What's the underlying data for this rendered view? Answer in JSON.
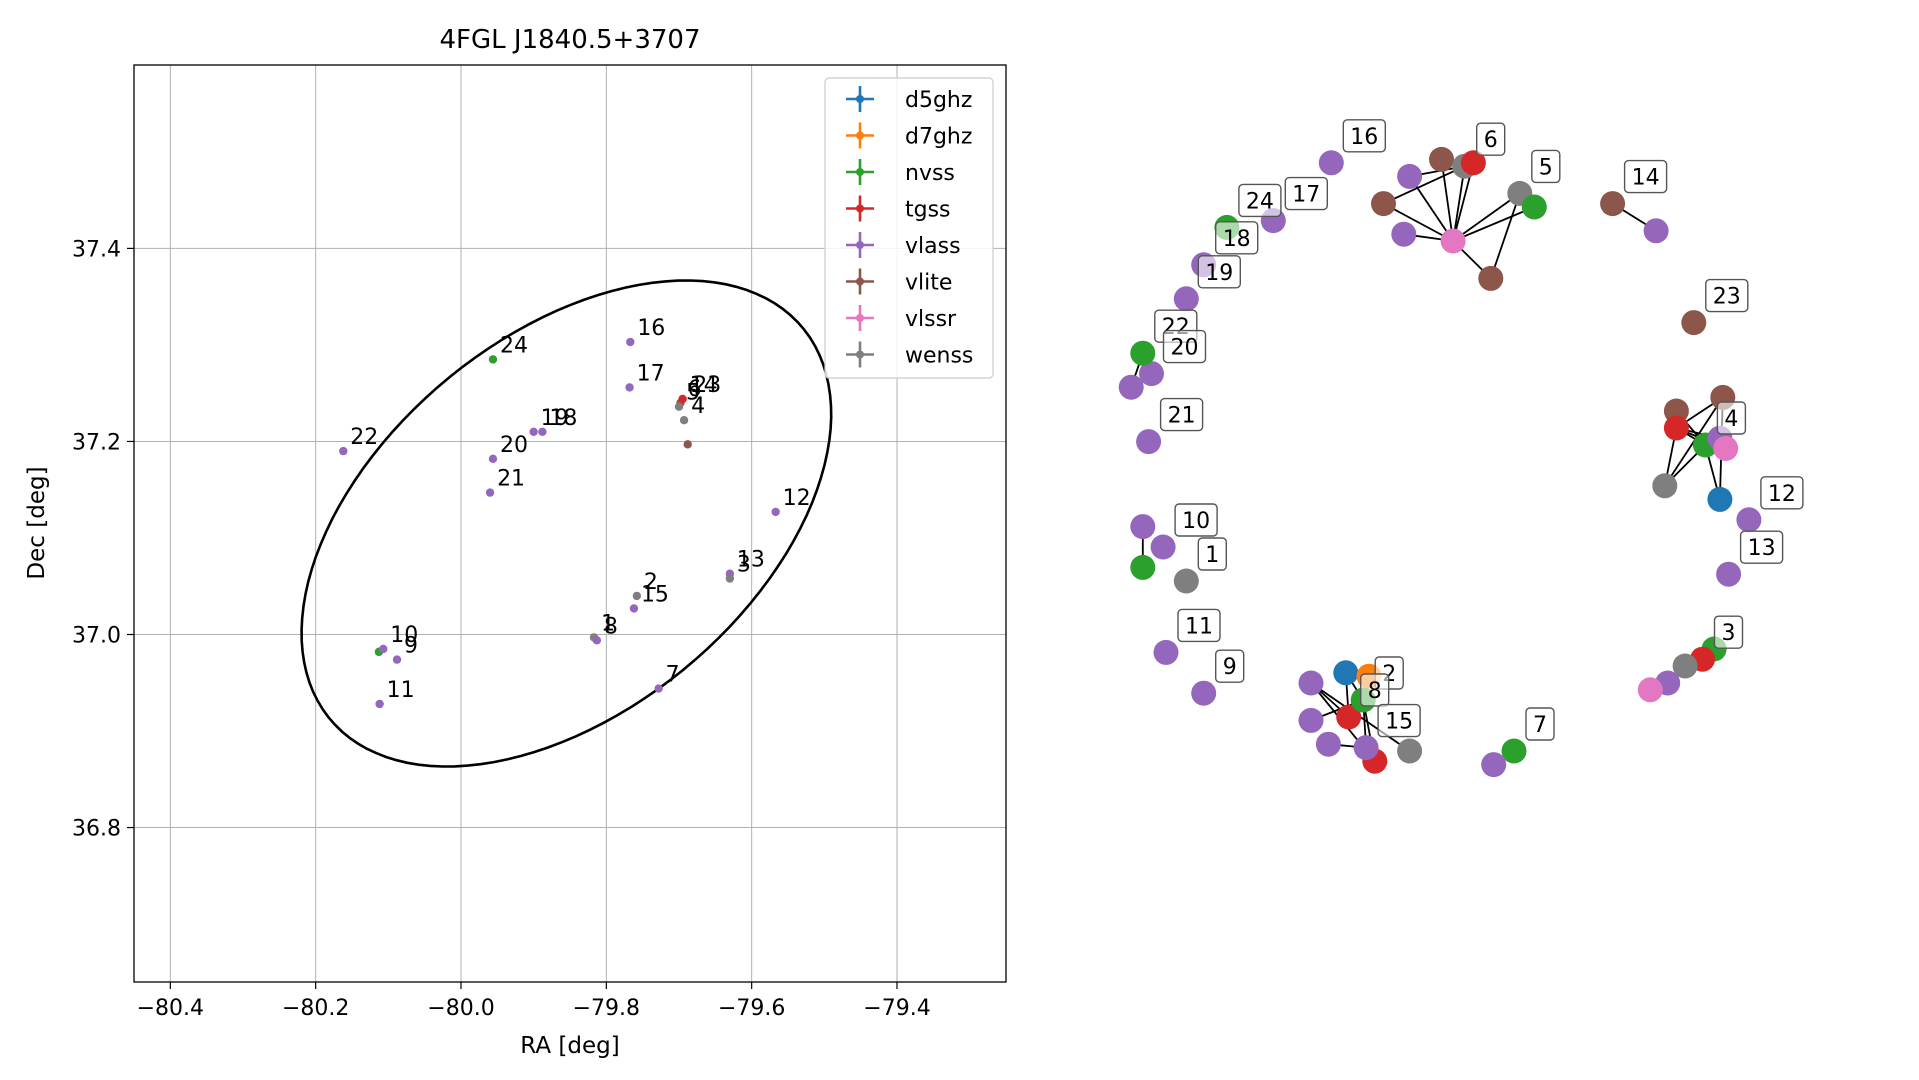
{
  "chart_data": [
    {
      "type": "scatter",
      "title": "4FGL J1840.5+3707",
      "xlabel": "RA [deg]",
      "ylabel": "Dec [deg]",
      "xlim": [
        -80.45,
        -79.25
      ],
      "ylim": [
        36.64,
        37.59
      ],
      "xticks": [
        -80.4,
        -80.2,
        -80.0,
        -79.8,
        -79.6,
        -79.4
      ],
      "xtick_labels": [
        "−80.4",
        "−80.2",
        "−80.0",
        "−79.8",
        "−79.6",
        "−79.4"
      ],
      "yticks": [
        36.8,
        37.0,
        37.2,
        37.4
      ],
      "ytick_labels": [
        "36.8",
        "37.0",
        "37.2",
        "37.4"
      ],
      "grid": true,
      "legend_position": "top-right",
      "series": [
        {
          "name": "d5ghz",
          "color": "#1f77b4"
        },
        {
          "name": "d7ghz",
          "color": "#ff7f0e"
        },
        {
          "name": "nvss",
          "color": "#2ca02c"
        },
        {
          "name": "tgss",
          "color": "#d62728"
        },
        {
          "name": "vlass",
          "color": "#9467bd"
        },
        {
          "name": "vlite",
          "color": "#8c564b"
        },
        {
          "name": "vlssr",
          "color": "#e377c2"
        },
        {
          "name": "wenss",
          "color": "#7f7f7f"
        }
      ],
      "ellipse": {
        "center_ra": -79.855,
        "center_dec": 37.115,
        "semi_major_deg": 0.39,
        "semi_minor_deg": 0.21,
        "angle_deg": 25
      },
      "points": [
        {
          "ra": -79.956,
          "dec": 37.285,
          "series": "nvss"
        },
        {
          "ra": -80.162,
          "dec": 37.19,
          "series": "vlass"
        },
        {
          "ra": -79.956,
          "dec": 37.182,
          "series": "vlass"
        },
        {
          "ra": -79.96,
          "dec": 37.147,
          "series": "vlass"
        },
        {
          "ra": -79.9,
          "dec": 37.21,
          "series": "vlass"
        },
        {
          "ra": -79.888,
          "dec": 37.21,
          "series": "vlass"
        },
        {
          "ra": -79.767,
          "dec": 37.303,
          "series": "vlass"
        },
        {
          "ra": -79.768,
          "dec": 37.256,
          "series": "vlass"
        },
        {
          "ra": -79.698,
          "dec": 37.24,
          "series": "vlite"
        },
        {
          "ra": -79.695,
          "dec": 37.244,
          "series": "tgss"
        },
        {
          "ra": -79.7,
          "dec": 37.236,
          "series": "wenss"
        },
        {
          "ra": -79.693,
          "dec": 37.222,
          "series": "wenss"
        },
        {
          "ra": -79.688,
          "dec": 37.197,
          "series": "vlite"
        },
        {
          "ra": -79.567,
          "dec": 37.127,
          "series": "vlass"
        },
        {
          "ra": -79.63,
          "dec": 37.063,
          "series": "vlass"
        },
        {
          "ra": -79.63,
          "dec": 37.058,
          "series": "wenss"
        },
        {
          "ra": -79.758,
          "dec": 37.04,
          "series": "wenss"
        },
        {
          "ra": -79.762,
          "dec": 37.027,
          "series": "vlass"
        },
        {
          "ra": -79.817,
          "dec": 36.997,
          "series": "wenss"
        },
        {
          "ra": -79.813,
          "dec": 36.994,
          "series": "vlass"
        },
        {
          "ra": -79.728,
          "dec": 36.944,
          "series": "vlass"
        },
        {
          "ra": -80.113,
          "dec": 36.982,
          "series": "nvss"
        },
        {
          "ra": -80.107,
          "dec": 36.985,
          "series": "vlass"
        },
        {
          "ra": -80.088,
          "dec": 36.974,
          "series": "vlass"
        },
        {
          "ra": -80.112,
          "dec": 36.928,
          "series": "vlass"
        }
      ],
      "annotations": [
        {
          "text": "24",
          "ra": -79.956,
          "dec": 37.285
        },
        {
          "text": "22",
          "ra": -80.162,
          "dec": 37.19
        },
        {
          "text": "20",
          "ra": -79.956,
          "dec": 37.182
        },
        {
          "text": "21",
          "ra": -79.96,
          "dec": 37.147
        },
        {
          "text": "19",
          "ra": -79.9,
          "dec": 37.21
        },
        {
          "text": "18",
          "ra": -79.888,
          "dec": 37.21
        },
        {
          "text": "16",
          "ra": -79.767,
          "dec": 37.303
        },
        {
          "text": "17",
          "ra": -79.768,
          "dec": 37.256
        },
        {
          "text": "6",
          "ra": -79.698,
          "dec": 37.24
        },
        {
          "text": "14",
          "ra": -79.695,
          "dec": 37.244
        },
        {
          "text": "23",
          "ra": -79.69,
          "dec": 37.244
        },
        {
          "text": "5",
          "ra": -79.7,
          "dec": 37.236
        },
        {
          "text": "4",
          "ra": -79.693,
          "dec": 37.222
        },
        {
          "text": "12",
          "ra": -79.567,
          "dec": 37.127
        },
        {
          "text": "13",
          "ra": -79.63,
          "dec": 37.063
        },
        {
          "text": "3",
          "ra": -79.63,
          "dec": 37.058
        },
        {
          "text": "2",
          "ra": -79.758,
          "dec": 37.04
        },
        {
          "text": "15",
          "ra": -79.762,
          "dec": 37.027
        },
        {
          "text": "1",
          "ra": -79.817,
          "dec": 36.997
        },
        {
          "text": "8",
          "ra": -79.813,
          "dec": 36.994
        },
        {
          "text": "7",
          "ra": -79.728,
          "dec": 36.944
        },
        {
          "text": "10",
          "ra": -80.107,
          "dec": 36.985
        },
        {
          "text": "9",
          "ra": -80.088,
          "dec": 36.974
        },
        {
          "text": "11",
          "ra": -80.112,
          "dec": 36.928
        }
      ]
    },
    {
      "type": "network",
      "nodes": [
        {
          "id": "n6_vlass_a",
          "series": "vlass",
          "u": -0.18,
          "v": 0.62
        },
        {
          "id": "n6_vlite_a",
          "series": "vlite",
          "u": -0.25,
          "v": 0.71
        },
        {
          "id": "n6_vlass_b",
          "series": "vlass",
          "u": -0.16,
          "v": 0.79
        },
        {
          "id": "n6_vlite_b",
          "series": "vlite",
          "u": -0.05,
          "v": 0.84
        },
        {
          "id": "n6_wenss",
          "series": "wenss",
          "u": 0.03,
          "v": 0.82
        },
        {
          "id": "n6_tgss",
          "series": "tgss",
          "u": 0.06,
          "v": 0.83
        },
        {
          "id": "n6_vlssr",
          "series": "vlssr",
          "u": -0.01,
          "v": 0.6
        },
        {
          "id": "n6_vlite_c",
          "series": "vlite",
          "u": 0.12,
          "v": 0.49
        },
        {
          "id": "n6_wenss_b",
          "series": "wenss",
          "u": 0.22,
          "v": 0.74
        },
        {
          "id": "n6_nvss",
          "series": "nvss",
          "u": 0.27,
          "v": 0.7
        },
        {
          "id": "n14_vlite",
          "series": "vlite",
          "u": 0.54,
          "v": 0.71
        },
        {
          "id": "n14_vlass",
          "series": "vlass",
          "u": 0.69,
          "v": 0.63
        },
        {
          "id": "n23_vlite",
          "series": "vlite",
          "u": 0.82,
          "v": 0.36
        },
        {
          "id": "n4_vlite_a",
          "series": "vlite",
          "u": 0.92,
          "v": 0.14
        },
        {
          "id": "n4_vlite_b",
          "series": "vlite",
          "u": 0.76,
          "v": 0.1
        },
        {
          "id": "n4_tgss",
          "series": "tgss",
          "u": 0.76,
          "v": 0.05
        },
        {
          "id": "n4_nvss",
          "series": "nvss",
          "u": 0.86,
          "v": 0.0
        },
        {
          "id": "n4_vlass",
          "series": "vlass",
          "u": 0.91,
          "v": 0.02
        },
        {
          "id": "n4_vlssr",
          "series": "vlssr",
          "u": 0.93,
          "v": -0.01
        },
        {
          "id": "n4_wenss",
          "series": "wenss",
          "u": 0.72,
          "v": -0.12
        },
        {
          "id": "n4_d5ghz",
          "series": "d5ghz",
          "u": 0.91,
          "v": -0.16
        },
        {
          "id": "n12_vlass",
          "series": "vlass",
          "u": 1.01,
          "v": -0.22
        },
        {
          "id": "n13_vlass",
          "series": "vlass",
          "u": 0.94,
          "v": -0.38
        },
        {
          "id": "n3_nvss",
          "series": "nvss",
          "u": 0.89,
          "v": -0.6
        },
        {
          "id": "n3_tgss",
          "series": "tgss",
          "u": 0.85,
          "v": -0.63
        },
        {
          "id": "n3_wenss",
          "series": "wenss",
          "u": 0.79,
          "v": -0.65
        },
        {
          "id": "n3_vlass",
          "series": "vlass",
          "u": 0.73,
          "v": -0.7
        },
        {
          "id": "n3_vlssr",
          "series": "vlssr",
          "u": 0.67,
          "v": -0.72
        },
        {
          "id": "n7_nvss",
          "series": "nvss",
          "u": 0.2,
          "v": -0.9
        },
        {
          "id": "n7_vlass",
          "series": "vlass",
          "u": 0.13,
          "v": -0.94
        },
        {
          "id": "n15_wenss",
          "series": "wenss",
          "u": -0.16,
          "v": -0.9
        },
        {
          "id": "n15_tgss",
          "series": "tgss",
          "u": -0.28,
          "v": -0.93
        },
        {
          "id": "n15_vlass_a",
          "series": "vlass",
          "u": -0.31,
          "v": -0.89
        },
        {
          "id": "n15_vlass_b",
          "series": "vlass",
          "u": -0.44,
          "v": -0.88
        },
        {
          "id": "n8_tgss",
          "series": "tgss",
          "u": -0.37,
          "v": -0.8
        },
        {
          "id": "n8_vlass_a",
          "series": "vlass",
          "u": -0.5,
          "v": -0.81
        },
        {
          "id": "n8_vlass_b",
          "series": "vlass",
          "u": -0.5,
          "v": -0.7
        },
        {
          "id": "n2_d5ghz",
          "series": "d5ghz",
          "u": -0.38,
          "v": -0.67
        },
        {
          "id": "n2_d7ghz",
          "series": "d7ghz",
          "u": -0.3,
          "v": -0.68
        },
        {
          "id": "n2_nvss",
          "series": "nvss",
          "u": -0.32,
          "v": -0.75
        },
        {
          "id": "n9_vlass",
          "series": "vlass",
          "u": -0.87,
          "v": -0.73
        },
        {
          "id": "n11_vlass",
          "series": "vlass",
          "u": -1.0,
          "v": -0.61
        },
        {
          "id": "n1_wenss",
          "series": "wenss",
          "u": -0.93,
          "v": -0.4
        },
        {
          "id": "n10_vlass_a",
          "series": "vlass",
          "u": -1.08,
          "v": -0.24
        },
        {
          "id": "n10_vlass_b",
          "series": "vlass",
          "u": -1.01,
          "v": -0.3
        },
        {
          "id": "n10_nvss",
          "series": "nvss",
          "u": -1.08,
          "v": -0.36
        },
        {
          "id": "n21_vlass",
          "series": "vlass",
          "u": -1.06,
          "v": 0.01
        },
        {
          "id": "n20_vlass",
          "series": "vlass",
          "u": -1.05,
          "v": 0.21
        },
        {
          "id": "n22_nvss",
          "series": "nvss",
          "u": -1.08,
          "v": 0.27
        },
        {
          "id": "n22_vlass",
          "series": "vlass",
          "u": -1.12,
          "v": 0.17
        },
        {
          "id": "n19_vlass",
          "series": "vlass",
          "u": -0.93,
          "v": 0.43
        },
        {
          "id": "n18_vlass",
          "series": "vlass",
          "u": -0.87,
          "v": 0.53
        },
        {
          "id": "n24_nvss",
          "series": "nvss",
          "u": -0.79,
          "v": 0.64
        },
        {
          "id": "n17_vlass",
          "series": "vlass",
          "u": -0.63,
          "v": 0.66
        },
        {
          "id": "n16_vlass",
          "series": "vlass",
          "u": -0.43,
          "v": 0.83
        }
      ],
      "edges": [
        [
          "n6_vlssr",
          "n6_vlass_a"
        ],
        [
          "n6_vlssr",
          "n6_vlite_a"
        ],
        [
          "n6_vlssr",
          "n6_vlass_b"
        ],
        [
          "n6_vlssr",
          "n6_vlite_b"
        ],
        [
          "n6_vlssr",
          "n6_wenss"
        ],
        [
          "n6_vlssr",
          "n6_tgss"
        ],
        [
          "n6_vlssr",
          "n6_vlite_c"
        ],
        [
          "n6_vlssr",
          "n6_wenss_b"
        ],
        [
          "n6_vlssr",
          "n6_nvss"
        ],
        [
          "n6_vlite_a",
          "n6_wenss"
        ],
        [
          "n6_vlass_b",
          "n6_wenss"
        ],
        [
          "n6_wenss_b",
          "n6_nvss"
        ],
        [
          "n6_vlite_b",
          "n6_tgss"
        ],
        [
          "n6_wenss_b",
          "n6_vlite_c"
        ],
        [
          "n14_vlite",
          "n14_vlass"
        ],
        [
          "n4_tgss",
          "n4_vlite_a"
        ],
        [
          "n4_tgss",
          "n4_vlite_b"
        ],
        [
          "n4_tgss",
          "n4_nvss"
        ],
        [
          "n4_tgss",
          "n4_vlass"
        ],
        [
          "n4_tgss",
          "n4_vlssr"
        ],
        [
          "n4_tgss",
          "n4_wenss"
        ],
        [
          "n4_wenss",
          "n4_vlite_a"
        ],
        [
          "n4_wenss",
          "n4_nvss"
        ],
        [
          "n4_nvss",
          "n4_d5ghz"
        ],
        [
          "n4_vlite_a",
          "n4_d5ghz"
        ],
        [
          "n4_vlite_b",
          "n4_nvss"
        ],
        [
          "n4_nvss",
          "n4_vlssr"
        ],
        [
          "n3_nvss",
          "n3_wenss"
        ],
        [
          "n3_tgss",
          "n3_vlass"
        ],
        [
          "n7_nvss",
          "n7_vlass"
        ],
        [
          "n2_d5ghz",
          "n2_nvss"
        ],
        [
          "n2_d5ghz",
          "n8_tgss"
        ],
        [
          "n2_d7ghz",
          "n2_nvss"
        ],
        [
          "n8_vlass_b",
          "n8_tgss"
        ],
        [
          "n8_vlass_b",
          "n15_tgss"
        ],
        [
          "n8_vlass_b",
          "n15_wenss"
        ],
        [
          "n8_vlass_a",
          "n2_nvss"
        ],
        [
          "n8_tgss",
          "n2_nvss"
        ],
        [
          "n15_vlass_b",
          "n15_vlass_a"
        ],
        [
          "n15_vlass_a",
          "n2_nvss"
        ],
        [
          "n15_tgss",
          "n2_nvss"
        ],
        [
          "n10_vlass_a",
          "n10_nvss"
        ],
        [
          "n22_nvss",
          "n22_vlass"
        ]
      ],
      "labels": [
        {
          "text": "16",
          "node": "n16_vlass"
        },
        {
          "text": "17",
          "node": "n17_vlass"
        },
        {
          "text": "24",
          "node": "n24_nvss"
        },
        {
          "text": "18",
          "node": "n18_vlass"
        },
        {
          "text": "19",
          "node": "n19_vlass"
        },
        {
          "text": "22",
          "node": "n22_nvss"
        },
        {
          "text": "20",
          "node": "n20_vlass"
        },
        {
          "text": "21",
          "node": "n21_vlass"
        },
        {
          "text": "10",
          "node": "n10_vlass_b"
        },
        {
          "text": "1",
          "node": "n1_wenss"
        },
        {
          "text": "11",
          "node": "n11_vlass"
        },
        {
          "text": "9",
          "node": "n9_vlass"
        },
        {
          "text": "6",
          "node": "n6_wenss"
        },
        {
          "text": "5",
          "node": "n6_wenss_b"
        },
        {
          "text": "14",
          "node": "n14_vlite"
        },
        {
          "text": "23",
          "node": "n23_vlite"
        },
        {
          "text": "4",
          "node": "n4_nvss"
        },
        {
          "text": "12",
          "node": "n12_vlass"
        },
        {
          "text": "13",
          "node": "n13_vlass"
        },
        {
          "text": "3",
          "node": "n3_tgss"
        },
        {
          "text": "7",
          "node": "n7_nvss"
        },
        {
          "text": "2",
          "node": "n2_nvss"
        },
        {
          "text": "8",
          "node": "n8_tgss"
        },
        {
          "text": "15",
          "node": "n15_vlass_a"
        }
      ]
    }
  ]
}
